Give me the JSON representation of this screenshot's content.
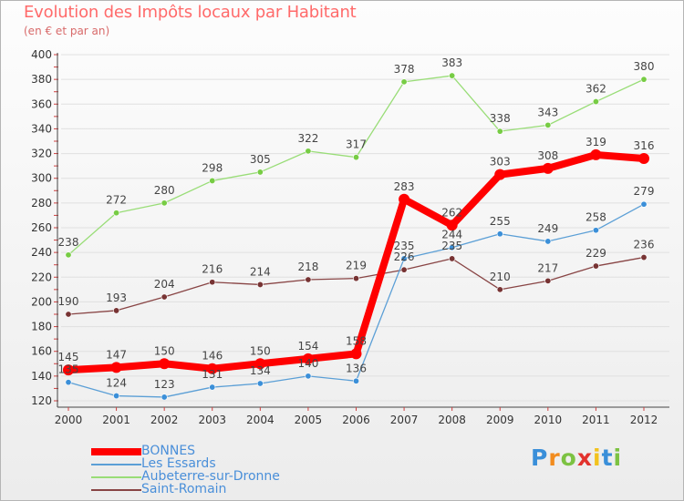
{
  "title": "Evolution des Impôts locaux par Habitant",
  "subtitle": "(en € et par an)",
  "logo_text": "Proxiti",
  "chart_data": {
    "type": "line",
    "x": [
      "2000",
      "2001",
      "2002",
      "2003",
      "2004",
      "2005",
      "2006",
      "2007",
      "2008",
      "2009",
      "2010",
      "2011",
      "2012"
    ],
    "ylim": [
      120,
      400
    ],
    "yticks": [
      120,
      140,
      160,
      180,
      200,
      220,
      240,
      260,
      280,
      300,
      320,
      340,
      360,
      380,
      400
    ],
    "grid": "horizontal",
    "legend_position": "bottom-left",
    "series": [
      {
        "name": "Aubeterre-sur-Dronne",
        "color": "#99dd77",
        "marker": "#77cc44",
        "values": [
          238,
          272,
          280,
          298,
          305,
          322,
          317,
          378,
          383,
          338,
          343,
          362,
          380
        ]
      },
      {
        "name": "Saint-Romain",
        "color": "#884444",
        "marker": "#773333",
        "values": [
          190,
          193,
          204,
          216,
          214,
          218,
          219,
          226,
          235,
          210,
          217,
          229,
          236
        ]
      },
      {
        "name": "Les Essards",
        "color": "#5b9fd6",
        "marker": "#3b8fd8",
        "values": [
          135,
          124,
          123,
          131,
          134,
          140,
          136,
          235,
          244,
          255,
          249,
          258,
          279
        ]
      },
      {
        "name": "BONNES",
        "color": "#ff0000",
        "marker": "#ff0000",
        "values": [
          145,
          147,
          150,
          146,
          150,
          154,
          158,
          283,
          262,
          303,
          308,
          319,
          316
        ]
      }
    ],
    "legend": [
      "BONNES",
      "Les Essards",
      "Aubeterre-sur-Dronne",
      "Saint-Romain"
    ]
  }
}
